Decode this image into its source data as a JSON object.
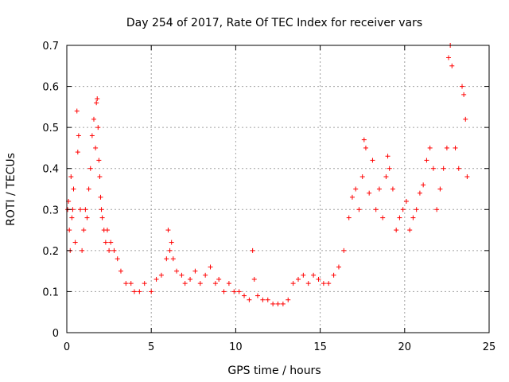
{
  "chart_data": {
    "type": "scatter",
    "title": "Day 254 of 2017, Rate Of TEC Index for receiver vars",
    "xlabel": "GPS time / hours",
    "ylabel": "ROTI / TECUs",
    "xlim": [
      0,
      25
    ],
    "ylim": [
      0,
      0.7
    ],
    "xticks": [
      0,
      5,
      10,
      15,
      20,
      25
    ],
    "yticks": [
      0,
      0.1,
      0.2,
      0.3,
      0.4,
      0.5,
      0.6,
      0.7
    ],
    "grid": true,
    "marker": "+",
    "color": "#ff0000",
    "series": [
      {
        "x": [
          0.05,
          0.1,
          0.15,
          0.2,
          0.25,
          0.3,
          0.35,
          0.4,
          0.5,
          0.6,
          0.65,
          0.7,
          0.8,
          0.9,
          1.0,
          1.1,
          1.2,
          1.3,
          1.4,
          1.5,
          1.6,
          1.7,
          1.75,
          1.8,
          1.85,
          1.9,
          1.95,
          2.0,
          2.05,
          2.1,
          2.2,
          2.3,
          2.4,
          2.5,
          2.6,
          2.8,
          3.0,
          3.2,
          3.5,
          3.8,
          4.0,
          4.3,
          4.6,
          5.0,
          5.3,
          5.6,
          5.9,
          6.0,
          6.1,
          6.2,
          6.3,
          6.5,
          6.8,
          7.0,
          7.3,
          7.6,
          7.9,
          8.2,
          8.5,
          8.8,
          9.0,
          9.3,
          9.6,
          9.9,
          10.2,
          10.5,
          10.8,
          11.0,
          11.1,
          11.3,
          11.6,
          11.9,
          12.2,
          12.5,
          12.8,
          13.1,
          13.4,
          13.7,
          14.0,
          14.3,
          14.6,
          14.9,
          15.2,
          15.5,
          15.8,
          16.1,
          16.4,
          16.7,
          16.9,
          17.1,
          17.3,
          17.5,
          17.6,
          17.7,
          17.9,
          18.1,
          18.3,
          18.5,
          18.7,
          18.9,
          19.0,
          19.1,
          19.3,
          19.5,
          19.7,
          19.9,
          20.1,
          20.3,
          20.5,
          20.7,
          20.9,
          21.1,
          21.3,
          21.5,
          21.7,
          21.9,
          22.1,
          22.3,
          22.5,
          22.6,
          22.7,
          22.8,
          23.0,
          23.2,
          23.4,
          23.5,
          23.6,
          23.7
        ],
        "y": [
          0.3,
          0.32,
          0.25,
          0.2,
          0.38,
          0.28,
          0.3,
          0.35,
          0.22,
          0.54,
          0.44,
          0.48,
          0.3,
          0.2,
          0.25,
          0.3,
          0.28,
          0.35,
          0.4,
          0.48,
          0.52,
          0.45,
          0.56,
          0.57,
          0.5,
          0.42,
          0.38,
          0.33,
          0.3,
          0.28,
          0.25,
          0.22,
          0.25,
          0.2,
          0.22,
          0.2,
          0.18,
          0.15,
          0.12,
          0.12,
          0.1,
          0.1,
          0.12,
          0.1,
          0.13,
          0.14,
          0.18,
          0.25,
          0.2,
          0.22,
          0.18,
          0.15,
          0.14,
          0.12,
          0.13,
          0.15,
          0.12,
          0.14,
          0.16,
          0.12,
          0.13,
          0.1,
          0.12,
          0.1,
          0.1,
          0.09,
          0.08,
          0.2,
          0.13,
          0.09,
          0.08,
          0.08,
          0.07,
          0.07,
          0.07,
          0.08,
          0.12,
          0.13,
          0.14,
          0.12,
          0.14,
          0.13,
          0.12,
          0.12,
          0.14,
          0.16,
          0.2,
          0.28,
          0.33,
          0.35,
          0.3,
          0.38,
          0.47,
          0.45,
          0.34,
          0.42,
          0.3,
          0.35,
          0.28,
          0.38,
          0.43,
          0.4,
          0.35,
          0.25,
          0.28,
          0.3,
          0.32,
          0.25,
          0.28,
          0.3,
          0.34,
          0.36,
          0.42,
          0.45,
          0.4,
          0.3,
          0.35,
          0.4,
          0.45,
          0.67,
          0.7,
          0.65,
          0.45,
          0.4,
          0.6,
          0.58,
          0.52,
          0.38
        ]
      }
    ]
  }
}
